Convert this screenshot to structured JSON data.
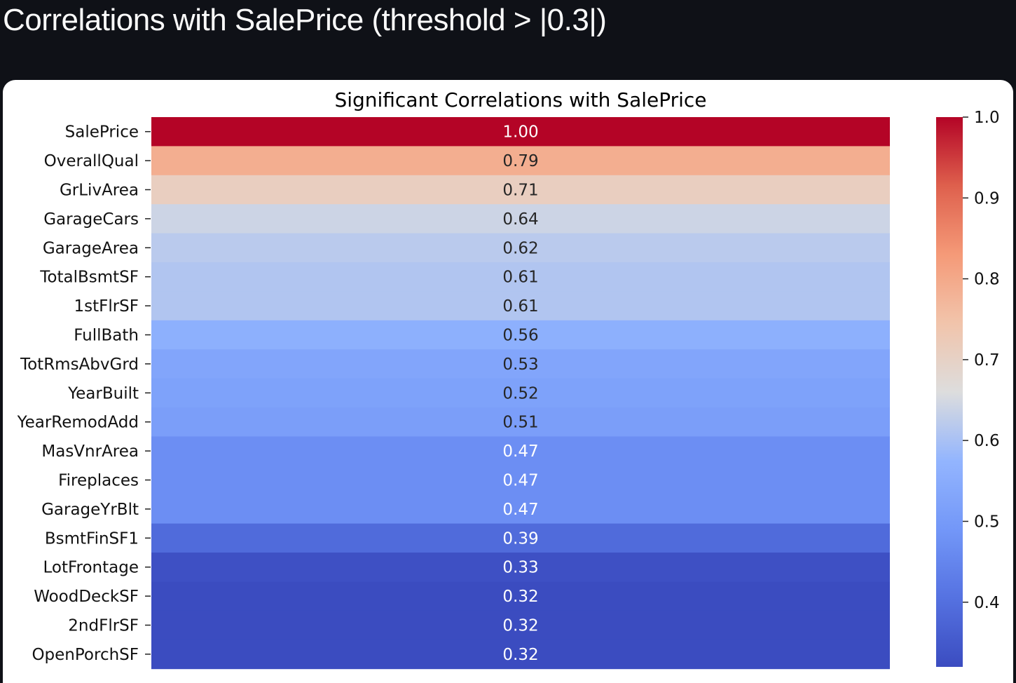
{
  "page": {
    "heading": "Correlations with SalePrice (threshold > |0.3|)"
  },
  "chart_data": {
    "type": "heatmap",
    "title": "Significant Correlations with SalePrice",
    "rows": [
      "SalePrice",
      "OverallQual",
      "GrLivArea",
      "GarageCars",
      "GarageArea",
      "TotalBsmtSF",
      "1stFlrSF",
      "FullBath",
      "TotRmsAbvGrd",
      "YearBuilt",
      "YearRemodAdd",
      "MasVnrArea",
      "Fireplaces",
      "GarageYrBlt",
      "BsmtFinSF1",
      "LotFrontage",
      "WoodDeckSF",
      "2ndFlrSF",
      "OpenPorchSF"
    ],
    "values": [
      1.0,
      0.79,
      0.71,
      0.64,
      0.62,
      0.61,
      0.61,
      0.56,
      0.53,
      0.52,
      0.51,
      0.47,
      0.47,
      0.47,
      0.39,
      0.33,
      0.32,
      0.32,
      0.32
    ],
    "value_format": "0.00",
    "colormap": "coolwarm",
    "colorbar": {
      "ticks": [
        1.0,
        0.9,
        0.8,
        0.7,
        0.6,
        0.5,
        0.4
      ],
      "tick_labels": [
        "1.0",
        "0.9",
        "0.8",
        "0.7",
        "0.6",
        "0.5",
        "0.4"
      ],
      "range": [
        0.32,
        1.0
      ]
    },
    "grid": false,
    "legend": "colorbar-right"
  }
}
